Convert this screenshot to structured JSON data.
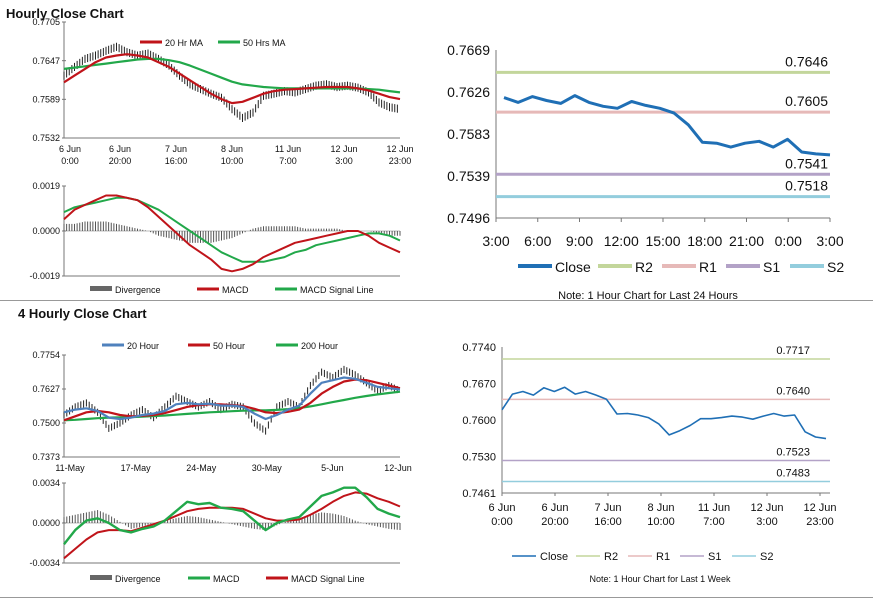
{
  "section1": {
    "title": "Hourly Close Chart"
  },
  "section2": {
    "title": "4 Hourly Close Chart"
  },
  "chart_data": [
    {
      "id": "hourly_price",
      "type": "line",
      "ylim": [
        0.7532,
        0.7705
      ],
      "yticks": [
        "0.7705",
        "0.7647",
        "0.7589",
        "0.7532"
      ],
      "xticks": [
        [
          "6 Jun",
          "0:00"
        ],
        [
          "6 Jun",
          "20:00"
        ],
        [
          "7 Jun",
          "16:00"
        ],
        [
          "8 Jun",
          "10:00"
        ],
        [
          "11 Jun",
          "7:00"
        ],
        [
          "12 Jun",
          "3:00"
        ],
        [
          "12 Jun",
          "23:00"
        ]
      ],
      "legend": [
        "20 Hr MA",
        "50 Hrs MA"
      ],
      "series": [
        {
          "name": "Price",
          "color": "#111111",
          "values": [
            0.7625,
            0.7638,
            0.765,
            0.7655,
            0.7662,
            0.7668,
            0.766,
            0.7655,
            0.7658,
            0.765,
            0.764,
            0.7625,
            0.7612,
            0.7605,
            0.7598,
            0.7592,
            0.7575,
            0.7562,
            0.757,
            0.7595,
            0.7598,
            0.7602,
            0.76,
            0.7605,
            0.761,
            0.7612,
            0.7608,
            0.761,
            0.7607,
            0.76,
            0.7585,
            0.7578,
            0.7575
          ]
        },
        {
          "name": "20 Hr MA",
          "color": "#c0141a",
          "values": [
            0.7615,
            0.7625,
            0.7635,
            0.7645,
            0.7652,
            0.7655,
            0.7657,
            0.7655,
            0.7652,
            0.7645,
            0.7638,
            0.7628,
            0.7618,
            0.7608,
            0.7598,
            0.759,
            0.7584,
            0.7586,
            0.7592,
            0.7598,
            0.7602,
            0.7604,
            0.7605,
            0.7606,
            0.7607,
            0.7608,
            0.7608,
            0.7608,
            0.7606,
            0.7603,
            0.7598,
            0.7593,
            0.759
          ]
        },
        {
          "name": "50 Hrs MA",
          "color": "#22a84a",
          "values": [
            0.7635,
            0.7637,
            0.7639,
            0.7641,
            0.7643,
            0.7645,
            0.7647,
            0.7649,
            0.765,
            0.765,
            0.7648,
            0.7645,
            0.764,
            0.7634,
            0.7628,
            0.7622,
            0.7616,
            0.7612,
            0.761,
            0.7608,
            0.7607,
            0.7606,
            0.7606,
            0.7606,
            0.7606,
            0.7606,
            0.7606,
            0.7606,
            0.7606,
            0.7605,
            0.7604,
            0.7602,
            0.76
          ]
        }
      ]
    },
    {
      "id": "hourly_macd",
      "type": "line",
      "ylim": [
        -0.0019,
        0.0019
      ],
      "yticks": [
        "0.0019",
        "0.0000",
        "-0.0019"
      ],
      "legend": [
        "Divergence",
        "MACD",
        "MACD Signal Line"
      ],
      "divergence": [
        0.0003,
        0.0003,
        0.0004,
        0.0004,
        0.0004,
        0.0003,
        0.0002,
        0.0001,
        0.0,
        -0.0002,
        -0.0003,
        -0.0004,
        -0.0005,
        -0.0005,
        -0.0005,
        -0.0004,
        -0.0003,
        -0.0001,
        0.0001,
        0.0002,
        0.0002,
        0.0002,
        0.0002,
        0.0001,
        0.0001,
        0.0001,
        0.0001,
        0.0,
        0.0,
        0.0,
        -0.0001,
        -0.0002,
        -0.0002
      ],
      "series": [
        {
          "name": "MACD",
          "color": "#c0141a",
          "values": [
            0.0005,
            0.0009,
            0.0011,
            0.0013,
            0.0015,
            0.0015,
            0.0014,
            0.0013,
            0.001,
            0.0006,
            0.0002,
            -0.0002,
            -0.0006,
            -0.0009,
            -0.0012,
            -0.0016,
            -0.0017,
            -0.0016,
            -0.0014,
            -0.0011,
            -0.0009,
            -0.0007,
            -0.0005,
            -0.0004,
            -0.0003,
            -0.0002,
            -0.0001,
            0.0,
            0.0,
            -0.0002,
            -0.0005,
            -0.0007,
            -0.0009
          ]
        },
        {
          "name": "MACD Signal Line",
          "color": "#22a84a",
          "values": [
            0.0008,
            0.001,
            0.0011,
            0.0012,
            0.0013,
            0.0014,
            0.0014,
            0.0013,
            0.0011,
            0.0009,
            0.0006,
            0.0003,
            0.0,
            -0.0003,
            -0.0006,
            -0.0009,
            -0.0011,
            -0.0013,
            -0.0013,
            -0.0013,
            -0.0012,
            -0.0011,
            -0.0009,
            -0.0008,
            -0.0006,
            -0.0005,
            -0.0004,
            -0.0003,
            -0.0002,
            -0.0001,
            -0.0001,
            -0.0002,
            -0.0004
          ]
        }
      ]
    },
    {
      "id": "hourly_levels",
      "type": "line",
      "ylim": [
        0.7496,
        0.7669
      ],
      "yticks": [
        "0.7669",
        "0.7626",
        "0.7583",
        "0.7539",
        "0.7496"
      ],
      "xticks": [
        "3:00",
        "6:00",
        "9:00",
        "12:00",
        "15:00",
        "18:00",
        "21:00",
        "0:00",
        "3:00"
      ],
      "close": [
        0.762,
        0.7615,
        0.7621,
        0.7617,
        0.7614,
        0.7622,
        0.7615,
        0.7611,
        0.7609,
        0.7616,
        0.7612,
        0.7609,
        0.7604,
        0.7592,
        0.7574,
        0.7573,
        0.7569,
        0.7573,
        0.7575,
        0.7569,
        0.7577,
        0.7564,
        0.7562,
        0.7561
      ],
      "levels": [
        {
          "name": "R2",
          "value": 0.7646,
          "label": "0.7646",
          "color": "#c3d69b"
        },
        {
          "name": "R1",
          "value": 0.7605,
          "label": "0.7605",
          "color": "#e6b9b8"
        },
        {
          "name": "S1",
          "value": 0.7541,
          "label": "0.7541",
          "color": "#b3a2c7"
        },
        {
          "name": "S2",
          "value": 0.7518,
          "label": "0.7518",
          "color": "#93cddd"
        }
      ],
      "legend": [
        "Close",
        "R2",
        "R1",
        "S1",
        "S2"
      ],
      "note": "Note: 1 Hour Chart for Last 24 Hours"
    },
    {
      "id": "four_hourly_price",
      "type": "line",
      "ylim": [
        0.7373,
        0.7754
      ],
      "yticks": [
        "0.7754",
        "0.7627",
        "0.7500",
        "0.7373"
      ],
      "xticks": [
        "11-May",
        "17-May",
        "24-May",
        "30-May",
        "5-Jun",
        "12-Jun"
      ],
      "legend": [
        "20 Hour",
        "50 Hour",
        "200 Hour"
      ],
      "series": [
        {
          "name": "Price",
          "color": "#111111",
          "values": [
            0.753,
            0.756,
            0.7575,
            0.754,
            0.748,
            0.75,
            0.753,
            0.755,
            0.752,
            0.756,
            0.76,
            0.758,
            0.756,
            0.758,
            0.755,
            0.757,
            0.756,
            0.75,
            0.747,
            0.756,
            0.758,
            0.756,
            0.764,
            0.769,
            0.767,
            0.77,
            0.768,
            0.765,
            0.762,
            0.764,
            0.762
          ]
        },
        {
          "name": "20 Hour",
          "color": "#4f81bd",
          "values": [
            0.754,
            0.755,
            0.7555,
            0.7545,
            0.752,
            0.7515,
            0.752,
            0.753,
            0.7535,
            0.7545,
            0.757,
            0.7575,
            0.757,
            0.7572,
            0.7565,
            0.7565,
            0.756,
            0.7535,
            0.7515,
            0.753,
            0.755,
            0.7565,
            0.761,
            0.765,
            0.766,
            0.767,
            0.7665,
            0.765,
            0.7635,
            0.763,
            0.7625
          ]
        },
        {
          "name": "50 Hour",
          "color": "#c0141a",
          "values": [
            0.751,
            0.7525,
            0.754,
            0.7545,
            0.754,
            0.753,
            0.7525,
            0.7527,
            0.753,
            0.7537,
            0.7548,
            0.756,
            0.7567,
            0.757,
            0.757,
            0.7567,
            0.7563,
            0.7553,
            0.754,
            0.7537,
            0.7542,
            0.755,
            0.7575,
            0.761,
            0.7635,
            0.7655,
            0.7662,
            0.766,
            0.765,
            0.764,
            0.763
          ]
        },
        {
          "name": "200 Hour",
          "color": "#22a84a",
          "values": [
            0.751,
            0.7512,
            0.7515,
            0.7518,
            0.752,
            0.7521,
            0.7522,
            0.7524,
            0.7526,
            0.7528,
            0.7531,
            0.7534,
            0.7537,
            0.754,
            0.7542,
            0.7544,
            0.7546,
            0.7547,
            0.7547,
            0.7549,
            0.7552,
            0.7556,
            0.7562,
            0.757,
            0.7578,
            0.7586,
            0.7594,
            0.7601,
            0.7607,
            0.7612,
            0.7617
          ]
        }
      ]
    },
    {
      "id": "four_hourly_macd",
      "type": "line",
      "ylim": [
        -0.0034,
        0.0034
      ],
      "yticks": [
        "0.0034",
        "0.0000",
        "-0.0034"
      ],
      "legend": [
        "Divergence",
        "MACD",
        "MACD Signal Line"
      ],
      "divergence": [
        0.0005,
        0.0007,
        0.0009,
        0.0011,
        0.0007,
        0.0001,
        -0.0005,
        -0.0003,
        0.0,
        0.0002,
        0.0004,
        0.0006,
        0.0005,
        0.0003,
        0.0001,
        -0.0001,
        -0.0003,
        -0.0005,
        -0.0006,
        -0.0002,
        0.0002,
        0.0004,
        0.0007,
        0.0009,
        0.0008,
        0.0006,
        0.0002,
        -0.0001,
        -0.0003,
        -0.0005,
        -0.0006
      ],
      "series": [
        {
          "name": "MACD",
          "color": "#22a84a",
          "values": [
            -0.0018,
            -0.0006,
            0.0002,
            0.0004,
            0.0,
            -0.0006,
            -0.0008,
            -0.0005,
            -0.0003,
            0.0002,
            0.001,
            0.0018,
            0.0016,
            0.0017,
            0.0013,
            0.0012,
            0.001,
            0.0002,
            -0.0006,
            0.0,
            0.0003,
            0.0005,
            0.0014,
            0.0023,
            0.0026,
            0.003,
            0.003,
            0.0022,
            0.0012,
            0.0008,
            0.0005
          ]
        },
        {
          "name": "MACD Signal Line",
          "color": "#c0141a",
          "values": [
            -0.003,
            -0.0022,
            -0.0014,
            -0.0008,
            -0.0006,
            -0.0006,
            -0.0007,
            -0.0004,
            -0.0001,
            0.0002,
            0.0006,
            0.001,
            0.0012,
            0.0013,
            0.0013,
            0.0013,
            0.0012,
            0.0008,
            0.0004,
            0.0002,
            0.0002,
            0.0003,
            0.0007,
            0.0012,
            0.0018,
            0.0023,
            0.0026,
            0.0025,
            0.0021,
            0.0018,
            0.0014
          ]
        }
      ]
    },
    {
      "id": "four_hourly_levels",
      "type": "line",
      "ylim": [
        0.7461,
        0.774
      ],
      "yticks": [
        "0.7740",
        "0.7670",
        "0.7600",
        "0.7530",
        "0.7461"
      ],
      "xticks": [
        [
          "6 Jun",
          "0:00"
        ],
        [
          "6 Jun",
          "20:00"
        ],
        [
          "7 Jun",
          "16:00"
        ],
        [
          "8 Jun",
          "10:00"
        ],
        [
          "11 Jun",
          "7:00"
        ],
        [
          "12 Jun",
          "3:00"
        ],
        [
          "12 Jun",
          "23:00"
        ]
      ],
      "close": [
        0.762,
        0.765,
        0.7655,
        0.7648,
        0.7662,
        0.7655,
        0.7663,
        0.765,
        0.7655,
        0.7648,
        0.764,
        0.7612,
        0.7613,
        0.761,
        0.7605,
        0.7593,
        0.7572,
        0.758,
        0.759,
        0.7603,
        0.7603,
        0.7605,
        0.7608,
        0.7606,
        0.7602,
        0.7608,
        0.7613,
        0.7608,
        0.761,
        0.7578,
        0.7568,
        0.7565
      ],
      "levels": [
        {
          "name": "R2",
          "value": 0.7717,
          "label": "0.7717",
          "color": "#c3d69b"
        },
        {
          "name": "R1",
          "value": 0.764,
          "label": "0.7640",
          "color": "#e6b9b8"
        },
        {
          "name": "S1",
          "value": 0.7523,
          "label": "0.7523",
          "color": "#b3a2c7"
        },
        {
          "name": "S2",
          "value": 0.7483,
          "label": "0.7483",
          "color": "#93cddd"
        }
      ],
      "legend": [
        "Close",
        "R2",
        "R1",
        "S1",
        "S2"
      ],
      "note": "Note: 1 Hour Chart for Last 1 Week"
    }
  ]
}
